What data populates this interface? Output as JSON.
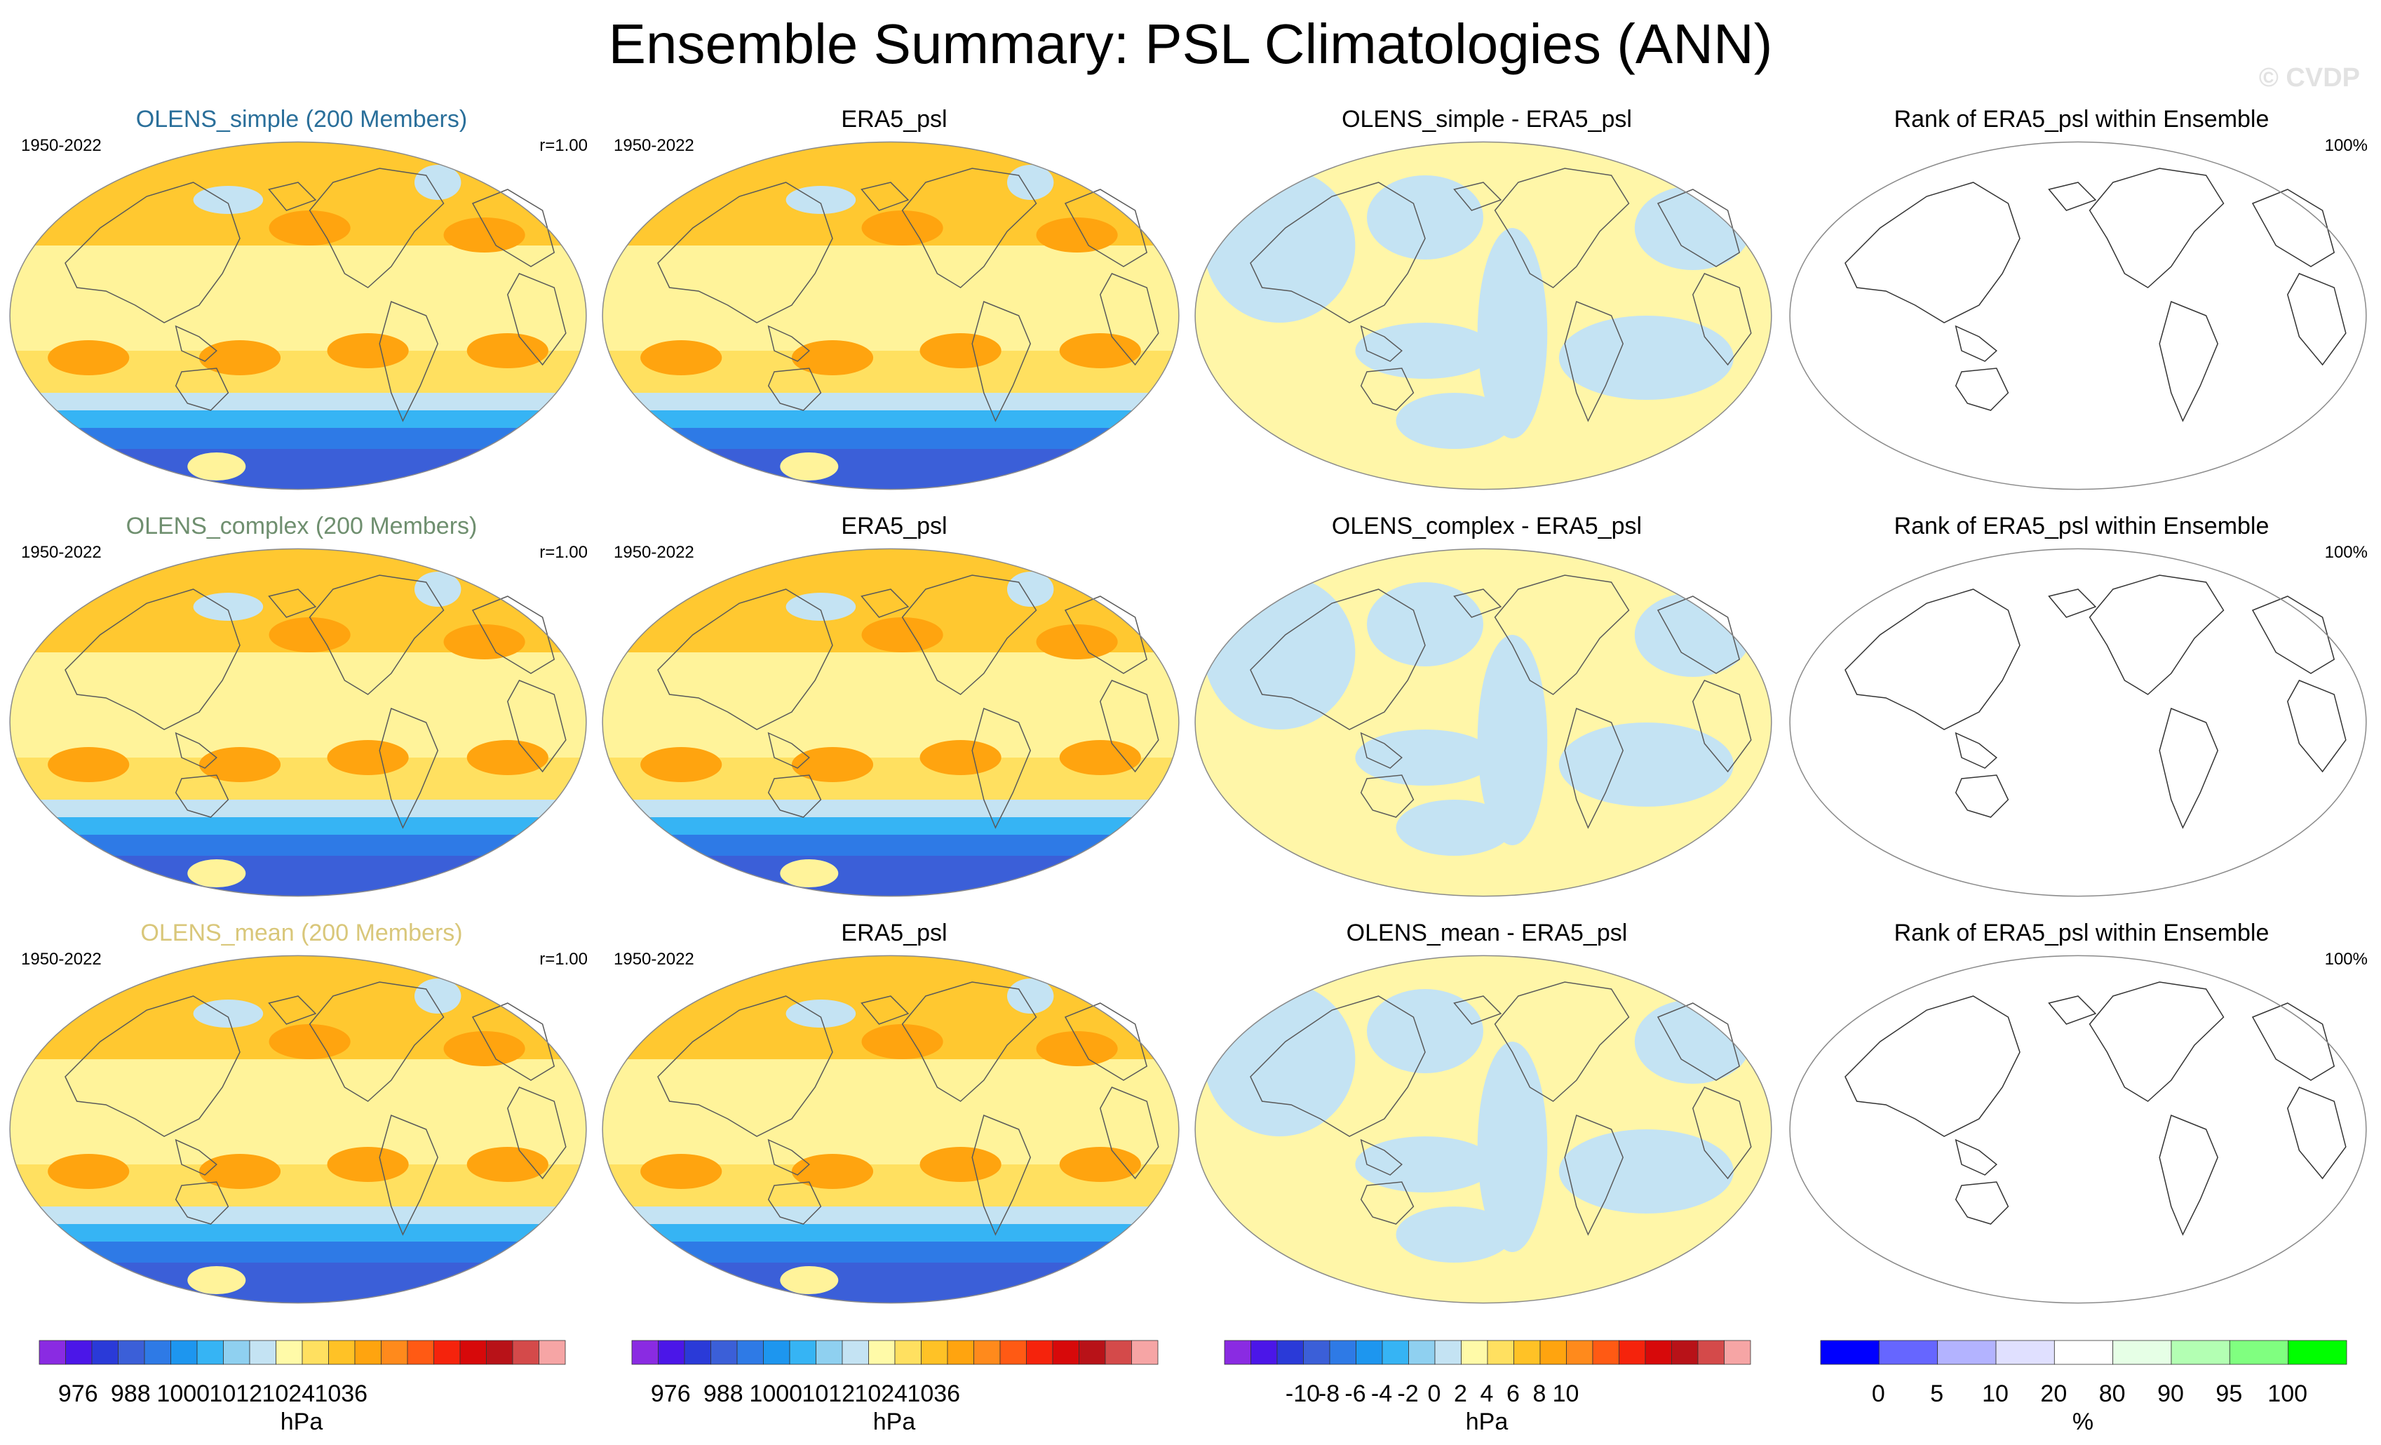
{
  "title": "Ensemble Summary: PSL Climatologies (ANN)",
  "copyright": "© CVDP",
  "rows": [
    {
      "ensemble_title": "OLENS_simple (200 Members)",
      "ensemble_title_color": "#2a6f9a",
      "period": "1950-2022",
      "correlation": "r=1.00",
      "obs_title": "ERA5_psl",
      "obs_period": "1950-2022",
      "diff_title": "OLENS_simple - ERA5_psl",
      "rank_title": "Rank of ERA5_psl within Ensemble",
      "rank_percent": "100%"
    },
    {
      "ensemble_title": "OLENS_complex (200 Members)",
      "ensemble_title_color": "#6f8f6f",
      "period": "1950-2022",
      "correlation": "r=1.00",
      "obs_title": "ERA5_psl",
      "obs_period": "1950-2022",
      "diff_title": "OLENS_complex - ERA5_psl",
      "rank_title": "Rank of ERA5_psl within Ensemble",
      "rank_percent": "100%"
    },
    {
      "ensemble_title": "OLENS_mean (200 Members)",
      "ensemble_title_color": "#d9c77a",
      "period": "1950-2022",
      "correlation": "r=1.00",
      "obs_title": "ERA5_psl",
      "obs_period": "1950-2022",
      "diff_title": "OLENS_mean - ERA5_psl",
      "rank_title": "Rank of ERA5_psl within Ensemble",
      "rank_percent": "100%"
    }
  ],
  "colorbars": [
    {
      "unit": "hPa",
      "colors": [
        "#8a2be2",
        "#4b16e8",
        "#2a3ad8",
        "#3b5fd8",
        "#2e7ae6",
        "#1d96ef",
        "#36b4f4",
        "#8fd0f0",
        "#c4e3f3",
        "#fffaa8",
        "#ffe060",
        "#ffc226",
        "#ffa40f",
        "#ff8a1c",
        "#ff5a14",
        "#f5230c",
        "#d7090a",
        "#b81218",
        "#d44a4a",
        "#f6a5a5"
      ],
      "labels": [
        "976",
        "988",
        "1000",
        "1012",
        "1024",
        "1036"
      ]
    },
    {
      "unit": "hPa",
      "colors": [
        "#8a2be2",
        "#4b16e8",
        "#2a3ad8",
        "#3b5fd8",
        "#2e7ae6",
        "#1d96ef",
        "#36b4f4",
        "#8fd0f0",
        "#c4e3f3",
        "#fffaa8",
        "#ffe060",
        "#ffc226",
        "#ffa40f",
        "#ff8a1c",
        "#ff5a14",
        "#f5230c",
        "#d7090a",
        "#b81218",
        "#d44a4a",
        "#f6a5a5"
      ],
      "labels": [
        "976",
        "988",
        "1000",
        "1012",
        "1024",
        "1036"
      ]
    },
    {
      "unit": "hPa",
      "colors": [
        "#8a2be2",
        "#4b16e8",
        "#2a3ad8",
        "#3b5fd8",
        "#2e7ae6",
        "#1d96ef",
        "#36b4f4",
        "#8fd0f0",
        "#c4e3f3",
        "#fffaa8",
        "#ffe060",
        "#ffc226",
        "#ffa40f",
        "#ff8a1c",
        "#ff5a14",
        "#f5230c",
        "#d7090a",
        "#b81218",
        "#d44a4a",
        "#f6a5a5"
      ],
      "labels": [
        "-10",
        "-8",
        "-6",
        "-4",
        "-2",
        "0",
        "2",
        "4",
        "6",
        "8",
        "10"
      ]
    },
    {
      "unit": "%",
      "colors": [
        "#0000ff",
        "#6666ff",
        "#b3b3ff",
        "#e0e0ff",
        "#ffffff",
        "#e6ffe6",
        "#b3ffb3",
        "#80ff80",
        "#00ff00"
      ],
      "labels": [
        "0",
        "5",
        "10",
        "20",
        "80",
        "90",
        "95",
        "100"
      ]
    }
  ]
}
